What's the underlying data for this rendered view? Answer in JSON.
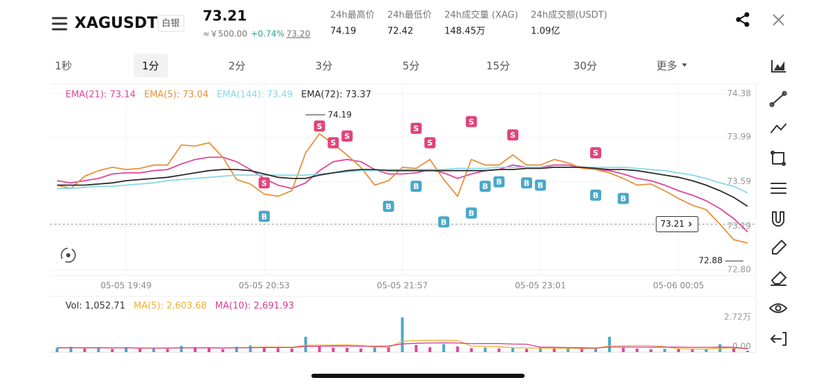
{
  "header": {
    "symbol": "XAGUSDT",
    "tag": "白银",
    "price": "73.21",
    "cny": "≈￥500.00",
    "change": "+0.74%",
    "mark_price": "73.20",
    "stats": [
      {
        "label": "24h最高价",
        "value": "74.19"
      },
      {
        "label": "24h最低价",
        "value": "72.42"
      },
      {
        "label": "24h成交量 (XAG)",
        "value": "148.45万"
      },
      {
        "label": "24h成交额(USDT)",
        "value": "1.09亿"
      }
    ]
  },
  "timeframes": {
    "items": [
      "1秒",
      "1分",
      "2分",
      "3分",
      "5分",
      "15分",
      "30分",
      "更多"
    ],
    "active": 1
  },
  "chart_data": [
    {
      "type": "line",
      "categories": [
        null,
        null,
        null,
        null,
        null,
        "05-05 19:49",
        null,
        null,
        null,
        null,
        null,
        null,
        null,
        null,
        null,
        "05-05 20:53",
        null,
        null,
        null,
        null,
        null,
        null,
        null,
        null,
        null,
        "05-05 21:57",
        null,
        null,
        null,
        null,
        null,
        null,
        null,
        null,
        null,
        "05-05 23:01",
        null,
        null,
        null,
        null,
        null,
        null,
        null,
        null,
        null,
        "05-06 00:05",
        null,
        null,
        null,
        null,
        null
      ],
      "series": [
        {
          "name": "EMA(21): 73.14",
          "color": "#e0459a",
          "values": [
            73.6,
            73.58,
            73.6,
            73.62,
            73.66,
            73.67,
            73.67,
            73.69,
            73.7,
            73.75,
            73.79,
            73.81,
            73.81,
            73.77,
            73.7,
            73.62,
            73.56,
            73.53,
            73.58,
            73.69,
            73.77,
            73.79,
            73.77,
            73.7,
            73.66,
            73.66,
            73.67,
            73.7,
            73.67,
            73.62,
            73.66,
            73.69,
            73.7,
            73.74,
            73.72,
            73.72,
            73.74,
            73.74,
            73.72,
            73.7,
            73.69,
            73.66,
            73.62,
            73.6,
            73.56,
            73.51,
            73.47,
            73.42,
            73.35,
            73.26,
            73.14
          ]
        },
        {
          "name": "EMA(5): 73.04",
          "color": "#e8913a",
          "values": [
            73.56,
            73.53,
            73.64,
            73.69,
            73.72,
            73.7,
            73.71,
            73.74,
            73.74,
            73.92,
            73.91,
            73.94,
            73.81,
            73.61,
            73.57,
            73.48,
            73.46,
            73.51,
            73.85,
            74.02,
            73.93,
            73.83,
            73.72,
            73.56,
            73.6,
            73.72,
            73.71,
            73.79,
            73.61,
            73.46,
            73.79,
            73.74,
            73.74,
            73.83,
            73.74,
            73.74,
            73.79,
            73.76,
            73.71,
            73.7,
            73.67,
            73.62,
            73.56,
            73.57,
            73.51,
            73.44,
            73.38,
            73.34,
            73.21,
            73.07,
            73.04
          ]
        },
        {
          "name": "EMA(144): 73.49",
          "color": "#8ad8e8",
          "values": [
            73.53,
            73.53,
            73.54,
            73.55,
            73.55,
            73.56,
            73.57,
            73.58,
            73.6,
            73.61,
            73.62,
            73.63,
            73.64,
            73.65,
            73.65,
            73.65,
            73.65,
            73.65,
            73.65,
            73.66,
            73.67,
            73.68,
            73.69,
            73.69,
            73.7,
            73.7,
            73.7,
            73.7,
            73.7,
            73.71,
            73.71,
            73.71,
            73.72,
            73.72,
            73.72,
            73.72,
            73.72,
            73.72,
            73.72,
            73.72,
            73.72,
            73.72,
            73.71,
            73.7,
            73.69,
            73.67,
            73.65,
            73.62,
            73.58,
            73.55,
            73.49
          ]
        },
        {
          "name": "EMA(72): 73.37",
          "color": "#2b2b2b",
          "values": [
            73.56,
            73.56,
            73.56,
            73.57,
            73.58,
            73.6,
            73.61,
            73.62,
            73.63,
            73.65,
            73.67,
            73.69,
            73.7,
            73.7,
            73.69,
            73.66,
            73.63,
            73.62,
            73.62,
            73.65,
            73.67,
            73.69,
            73.7,
            73.7,
            73.69,
            73.69,
            73.69,
            73.69,
            73.69,
            73.69,
            73.69,
            73.69,
            73.7,
            73.7,
            73.71,
            73.71,
            73.72,
            73.72,
            73.72,
            73.71,
            73.7,
            73.7,
            73.69,
            73.67,
            73.65,
            73.63,
            73.6,
            73.56,
            73.51,
            73.45,
            73.37
          ]
        }
      ],
      "sells": [
        null,
        null,
        null,
        null,
        null,
        null,
        null,
        null,
        null,
        null,
        null,
        null,
        null,
        null,
        null,
        73.58,
        null,
        null,
        null,
        74.09,
        73.94,
        74.0,
        null,
        null,
        null,
        null,
        74.07,
        73.94,
        null,
        null,
        74.13,
        null,
        null,
        74.01,
        null,
        null,
        null,
        null,
        null,
        73.85,
        null,
        null,
        null,
        null,
        null,
        null,
        null,
        null,
        null,
        null,
        null
      ],
      "buys": [
        null,
        null,
        null,
        null,
        null,
        null,
        null,
        null,
        null,
        null,
        null,
        null,
        null,
        null,
        null,
        73.28,
        null,
        null,
        null,
        null,
        null,
        null,
        null,
        null,
        73.37,
        null,
        73.55,
        null,
        73.23,
        null,
        73.31,
        73.55,
        73.59,
        null,
        73.58,
        73.56,
        null,
        null,
        null,
        73.47,
        null,
        73.44,
        null,
        null,
        null,
        null,
        null,
        null,
        null,
        null,
        null
      ],
      "sell_label": "S",
      "buy_label": "B",
      "high": 74.19,
      "low": 72.88,
      "last_price": 73.21,
      "ylim": [
        72.75,
        74.47
      ],
      "yticks": [
        74.38,
        73.99,
        73.59,
        73.19,
        {
          "value": 72.8,
          "label": "72.80"
        }
      ],
      "grid": true
    },
    {
      "type": "bar",
      "series": [
        {
          "name": "Vol: 1,052.71",
          "color": "#e0459a",
          "values": [
            3200,
            4100,
            2800,
            3600,
            2500,
            3900,
            2700,
            3300,
            2600,
            4800,
            3500,
            3000,
            2400,
            4200,
            5200,
            3800,
            3100,
            2900,
            12000,
            4500,
            3600,
            3300,
            2800,
            4900,
            4000,
            27000,
            5600,
            3800,
            6200,
            4400,
            3100,
            3700,
            2900,
            3400,
            2600,
            3000,
            2700,
            3200,
            2500,
            2900,
            12000,
            3400,
            2800,
            2300,
            2600,
            2400,
            2100,
            2500,
            6200,
            3800,
            1052.71
          ]
        },
        {
          "name": "MA(5): 2,603.68",
          "color": "#f0b030",
          "values": [
            3300,
            3400,
            3300,
            3400,
            3200,
            3400,
            3100,
            3200,
            3000,
            3500,
            3400,
            3400,
            3300,
            3500,
            3700,
            3900,
            3900,
            3800,
            5300,
            5500,
            5500,
            5700,
            5200,
            3900,
            3800,
            8500,
            9000,
            9100,
            9300,
            9000,
            4600,
            4600,
            4200,
            3500,
            3300,
            3100,
            3100,
            3000,
            2800,
            2900,
            4900,
            5000,
            5200,
            5100,
            4300,
            2700,
            2400,
            2400,
            3100,
            3300,
            2603.68
          ]
        },
        {
          "name": "MA(10): 2,691.93",
          "color": "#d63c8c",
          "values": [
            3400,
            3400,
            3400,
            3400,
            3300,
            3300,
            3200,
            3200,
            3200,
            3300,
            3300,
            3300,
            3200,
            3300,
            3500,
            3600,
            3600,
            3600,
            4500,
            4600,
            4700,
            4800,
            4600,
            4600,
            4700,
            6400,
            6900,
            7100,
            7200,
            7100,
            6600,
            6700,
            6700,
            6300,
            6200,
            3900,
            3800,
            3600,
            3400,
            3200,
            4000,
            4000,
            4000,
            3900,
            3900,
            3900,
            3700,
            3700,
            3900,
            3800,
            2691.93
          ]
        }
      ],
      "alt_color": "#4aa8c8",
      "ylim": [
        0,
        32600
      ],
      "yticks": [
        {
          "value": 27200,
          "label": "2.72万"
        },
        {
          "value": 0,
          "label": "0.00"
        }
      ]
    }
  ]
}
